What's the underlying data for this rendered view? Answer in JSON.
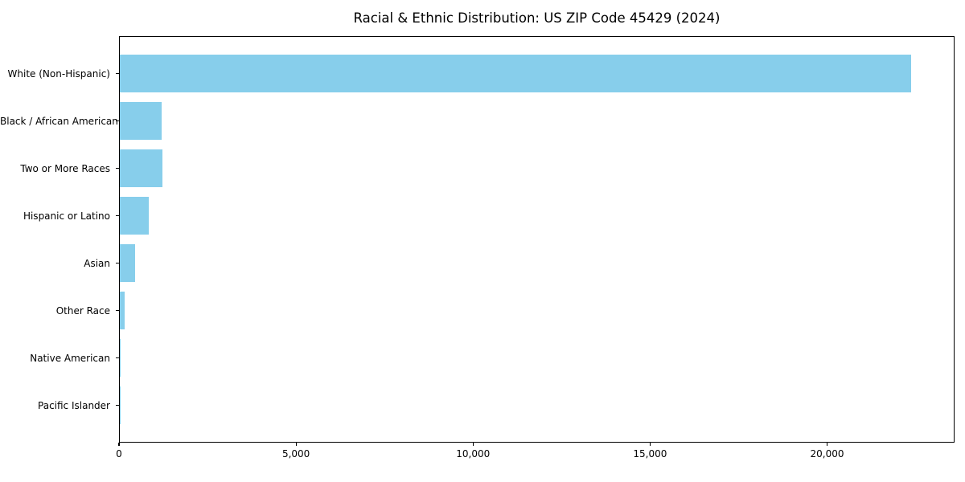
{
  "title": "Racial & Ethnic Distribution: US ZIP Code 45429 (2024)",
  "colors": {
    "bar": "#87CEEB",
    "axis": "#000000",
    "background": "#FFFFFF",
    "text": "#000000"
  },
  "chart_data": {
    "type": "bar",
    "orientation": "horizontal",
    "title": "Racial & Ethnic Distribution: US ZIP Code 45429 (2024)",
    "xlabel": "",
    "ylabel": "",
    "categories": [
      "White (Non-Hispanic)",
      "Black / African American",
      "Two or More Races",
      "Hispanic or Latino",
      "Asian",
      "Other Race",
      "Native American",
      "Pacific Islander"
    ],
    "values": [
      22400,
      1180,
      1210,
      830,
      430,
      145,
      20,
      10
    ],
    "xlim": [
      0,
      23600
    ],
    "x_ticks": [
      0,
      5000,
      10000,
      15000,
      20000
    ],
    "x_tick_labels": [
      "0",
      "5,000",
      "10,000",
      "15,000",
      "20,000"
    ],
    "grid": false,
    "legend": null,
    "bar_color": "#87CEEB",
    "frame": "full-box"
  }
}
